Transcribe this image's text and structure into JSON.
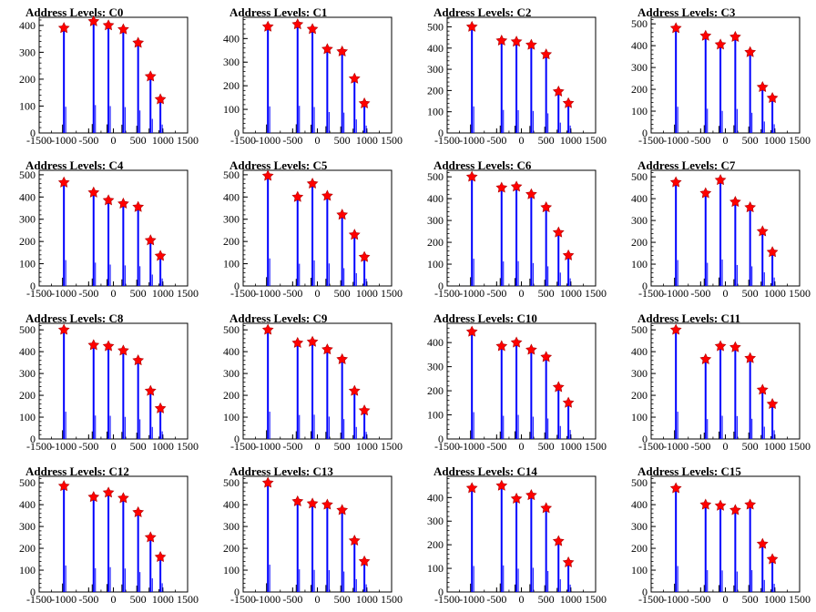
{
  "chart_data": [
    {
      "title": "Address Levels: C0",
      "type": "bar",
      "xlim": [
        -1500,
        1500
      ],
      "ylim": [
        0,
        430
      ],
      "yticks": [
        0,
        100,
        200,
        300,
        400
      ],
      "xticks": [
        -1500,
        -1000,
        -500,
        0,
        500,
        1000,
        1500
      ],
      "peaks": [
        {
          "x": -1000,
          "y": 390
        },
        {
          "x": -400,
          "y": 415
        },
        {
          "x": -100,
          "y": 400
        },
        {
          "x": 200,
          "y": 385
        },
        {
          "x": 500,
          "y": 335
        },
        {
          "x": 750,
          "y": 210
        },
        {
          "x": 950,
          "y": 125
        }
      ]
    },
    {
      "title": "Address Levels: C1",
      "type": "bar",
      "xlim": [
        -1500,
        1500
      ],
      "ylim": [
        0,
        490
      ],
      "yticks": [
        0,
        100,
        200,
        300,
        400
      ],
      "xticks": [
        -1500,
        -1000,
        -500,
        0,
        500,
        1000,
        1500
      ],
      "peaks": [
        {
          "x": -1000,
          "y": 450
        },
        {
          "x": -400,
          "y": 460
        },
        {
          "x": -100,
          "y": 440
        },
        {
          "x": 200,
          "y": 355
        },
        {
          "x": 500,
          "y": 345
        },
        {
          "x": 750,
          "y": 230
        },
        {
          "x": 950,
          "y": 125
        }
      ]
    },
    {
      "title": "Address Levels: C2",
      "type": "bar",
      "xlim": [
        -1500,
        1500
      ],
      "ylim": [
        0,
        545
      ],
      "yticks": [
        0,
        100,
        200,
        300,
        400,
        500
      ],
      "xticks": [
        -1500,
        -1000,
        -500,
        0,
        500,
        1000,
        1500
      ],
      "peaks": [
        {
          "x": -1000,
          "y": 500
        },
        {
          "x": -400,
          "y": 435
        },
        {
          "x": -100,
          "y": 430
        },
        {
          "x": 200,
          "y": 415
        },
        {
          "x": 500,
          "y": 370
        },
        {
          "x": 750,
          "y": 195
        },
        {
          "x": 950,
          "y": 140
        }
      ]
    },
    {
      "title": "Address Levels: C3",
      "type": "bar",
      "xlim": [
        -1500,
        1500
      ],
      "ylim": [
        0,
        530
      ],
      "yticks": [
        0,
        100,
        200,
        300,
        400,
        500
      ],
      "xticks": [
        -1500,
        -1000,
        -500,
        0,
        500,
        1000,
        1500
      ],
      "peaks": [
        {
          "x": -1000,
          "y": 480
        },
        {
          "x": -400,
          "y": 445
        },
        {
          "x": -100,
          "y": 405
        },
        {
          "x": 200,
          "y": 440
        },
        {
          "x": 500,
          "y": 370
        },
        {
          "x": 750,
          "y": 210
        },
        {
          "x": 950,
          "y": 160
        }
      ]
    },
    {
      "title": "Address Levels: C4",
      "type": "bar",
      "xlim": [
        -1500,
        1500
      ],
      "ylim": [
        0,
        520
      ],
      "yticks": [
        0,
        100,
        200,
        300,
        400,
        500
      ],
      "xticks": [
        -1500,
        -1000,
        -500,
        0,
        500,
        1000,
        1500
      ],
      "peaks": [
        {
          "x": -1000,
          "y": 465
        },
        {
          "x": -400,
          "y": 420
        },
        {
          "x": -100,
          "y": 385
        },
        {
          "x": 200,
          "y": 370
        },
        {
          "x": 500,
          "y": 355
        },
        {
          "x": 750,
          "y": 205
        },
        {
          "x": 950,
          "y": 135
        }
      ]
    },
    {
      "title": "Address Levels: C5",
      "type": "bar",
      "xlim": [
        -1500,
        1500
      ],
      "ylim": [
        0,
        520
      ],
      "yticks": [
        0,
        100,
        200,
        300,
        400,
        500
      ],
      "xticks": [
        -1500,
        -1000,
        -500,
        0,
        500,
        1000,
        1500
      ],
      "peaks": [
        {
          "x": -1000,
          "y": 495
        },
        {
          "x": -400,
          "y": 400
        },
        {
          "x": -100,
          "y": 460
        },
        {
          "x": 200,
          "y": 405
        },
        {
          "x": 500,
          "y": 320
        },
        {
          "x": 750,
          "y": 230
        },
        {
          "x": 950,
          "y": 130
        }
      ]
    },
    {
      "title": "Address Levels: C6",
      "type": "bar",
      "xlim": [
        -1500,
        1500
      ],
      "ylim": [
        0,
        530
      ],
      "yticks": [
        0,
        100,
        200,
        300,
        400,
        500
      ],
      "xticks": [
        -1500,
        -1000,
        -500,
        0,
        500,
        1000,
        1500
      ],
      "peaks": [
        {
          "x": -1000,
          "y": 500
        },
        {
          "x": -400,
          "y": 450
        },
        {
          "x": -100,
          "y": 455
        },
        {
          "x": 200,
          "y": 420
        },
        {
          "x": 500,
          "y": 360
        },
        {
          "x": 750,
          "y": 245
        },
        {
          "x": 950,
          "y": 140
        }
      ]
    },
    {
      "title": "Address Levels: C7",
      "type": "bar",
      "xlim": [
        -1500,
        1500
      ],
      "ylim": [
        0,
        530
      ],
      "yticks": [
        0,
        100,
        200,
        300,
        400,
        500
      ],
      "xticks": [
        -1500,
        -1000,
        -500,
        0,
        500,
        1000,
        1500
      ],
      "peaks": [
        {
          "x": -1000,
          "y": 475
        },
        {
          "x": -400,
          "y": 425
        },
        {
          "x": -100,
          "y": 485
        },
        {
          "x": 200,
          "y": 385
        },
        {
          "x": 500,
          "y": 360
        },
        {
          "x": 750,
          "y": 250
        },
        {
          "x": 950,
          "y": 155
        }
      ]
    },
    {
      "title": "Address Levels: C8",
      "type": "bar",
      "xlim": [
        -1500,
        1500
      ],
      "ylim": [
        0,
        530
      ],
      "yticks": [
        0,
        100,
        200,
        300,
        400,
        500
      ],
      "xticks": [
        -1500,
        -1000,
        -500,
        0,
        500,
        1000,
        1500
      ],
      "peaks": [
        {
          "x": -1000,
          "y": 500
        },
        {
          "x": -400,
          "y": 430
        },
        {
          "x": -100,
          "y": 425
        },
        {
          "x": 200,
          "y": 405
        },
        {
          "x": 500,
          "y": 360
        },
        {
          "x": 750,
          "y": 220
        },
        {
          "x": 950,
          "y": 140
        }
      ]
    },
    {
      "title": "Address Levels: C9",
      "type": "bar",
      "xlim": [
        -1500,
        1500
      ],
      "ylim": [
        0,
        530
      ],
      "yticks": [
        0,
        100,
        200,
        300,
        400,
        500
      ],
      "xticks": [
        -1500,
        -1000,
        -500,
        0,
        500,
        1000,
        1500
      ],
      "peaks": [
        {
          "x": -1000,
          "y": 500
        },
        {
          "x": -400,
          "y": 440
        },
        {
          "x": -100,
          "y": 445
        },
        {
          "x": 200,
          "y": 410
        },
        {
          "x": 500,
          "y": 365
        },
        {
          "x": 750,
          "y": 220
        },
        {
          "x": 950,
          "y": 130
        }
      ]
    },
    {
      "title": "Address Levels: C10",
      "type": "bar",
      "xlim": [
        -1500,
        1500
      ],
      "ylim": [
        0,
        480
      ],
      "yticks": [
        0,
        100,
        200,
        300,
        400
      ],
      "xticks": [
        -1500,
        -1000,
        -500,
        0,
        500,
        1000,
        1500
      ],
      "peaks": [
        {
          "x": -1000,
          "y": 445
        },
        {
          "x": -400,
          "y": 385
        },
        {
          "x": -100,
          "y": 400
        },
        {
          "x": 200,
          "y": 370
        },
        {
          "x": 500,
          "y": 340
        },
        {
          "x": 750,
          "y": 215
        },
        {
          "x": 950,
          "y": 150
        }
      ]
    },
    {
      "title": "Address Levels: C11",
      "type": "bar",
      "xlim": [
        -1500,
        1500
      ],
      "ylim": [
        0,
        530
      ],
      "yticks": [
        0,
        100,
        200,
        300,
        400,
        500
      ],
      "xticks": [
        -1500,
        -1000,
        -500,
        0,
        500,
        1000,
        1500
      ],
      "peaks": [
        {
          "x": -1000,
          "y": 500
        },
        {
          "x": -400,
          "y": 365
        },
        {
          "x": -100,
          "y": 425
        },
        {
          "x": 200,
          "y": 420
        },
        {
          "x": 500,
          "y": 370
        },
        {
          "x": 750,
          "y": 225
        },
        {
          "x": 950,
          "y": 160
        }
      ]
    },
    {
      "title": "Address Levels: C12",
      "type": "bar",
      "xlim": [
        -1500,
        1500
      ],
      "ylim": [
        0,
        530
      ],
      "yticks": [
        0,
        100,
        200,
        300,
        400,
        500
      ],
      "xticks": [
        -1500,
        -1000,
        -500,
        0,
        500,
        1000,
        1500
      ],
      "peaks": [
        {
          "x": -1000,
          "y": 485
        },
        {
          "x": -400,
          "y": 435
        },
        {
          "x": -100,
          "y": 455
        },
        {
          "x": 200,
          "y": 430
        },
        {
          "x": 500,
          "y": 365
        },
        {
          "x": 750,
          "y": 250
        },
        {
          "x": 950,
          "y": 160
        }
      ]
    },
    {
      "title": "Address Levels: C13",
      "type": "bar",
      "xlim": [
        -1500,
        1500
      ],
      "ylim": [
        0,
        530
      ],
      "yticks": [
        0,
        100,
        200,
        300,
        400,
        500
      ],
      "xticks": [
        -1500,
        -1000,
        -500,
        0,
        500,
        1000,
        1500
      ],
      "peaks": [
        {
          "x": -1000,
          "y": 500
        },
        {
          "x": -400,
          "y": 415
        },
        {
          "x": -100,
          "y": 405
        },
        {
          "x": 200,
          "y": 400
        },
        {
          "x": 500,
          "y": 375
        },
        {
          "x": 750,
          "y": 235
        },
        {
          "x": 950,
          "y": 140
        }
      ]
    },
    {
      "title": "Address Levels: C14",
      "type": "bar",
      "xlim": [
        -1500,
        1500
      ],
      "ylim": [
        0,
        490
      ],
      "yticks": [
        0,
        100,
        200,
        300,
        400
      ],
      "xticks": [
        -1500,
        -1000,
        -500,
        0,
        500,
        1000,
        1500
      ],
      "peaks": [
        {
          "x": -1000,
          "y": 440
        },
        {
          "x": -400,
          "y": 450
        },
        {
          "x": -100,
          "y": 395
        },
        {
          "x": 200,
          "y": 410
        },
        {
          "x": 500,
          "y": 355
        },
        {
          "x": 750,
          "y": 215
        },
        {
          "x": 950,
          "y": 125
        }
      ]
    },
    {
      "title": "Address Levels: C15",
      "type": "bar",
      "xlim": [
        -1500,
        1500
      ],
      "ylim": [
        0,
        530
      ],
      "yticks": [
        0,
        100,
        200,
        300,
        400,
        500
      ],
      "xticks": [
        -1500,
        -1000,
        -500,
        0,
        500,
        1000,
        1500
      ],
      "peaks": [
        {
          "x": -1000,
          "y": 475
        },
        {
          "x": -400,
          "y": 400
        },
        {
          "x": -100,
          "y": 395
        },
        {
          "x": 200,
          "y": 375
        },
        {
          "x": 500,
          "y": 400
        },
        {
          "x": 750,
          "y": 220
        },
        {
          "x": 950,
          "y": 150
        }
      ]
    }
  ],
  "style": {
    "bar_color": "#0000ff",
    "marker_color": "#ff0000",
    "marker_stroke": "#b00000",
    "axis_color": "#000000"
  }
}
